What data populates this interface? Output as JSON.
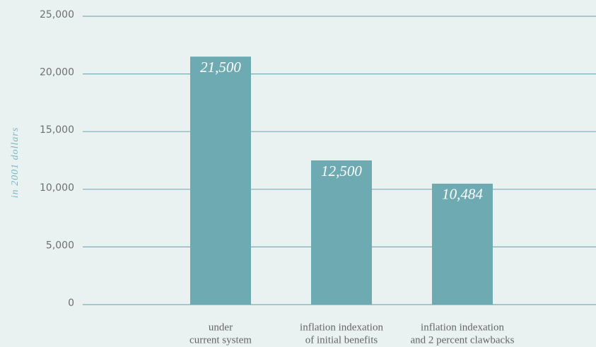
{
  "chart_data": {
    "type": "bar",
    "y_label": "in 2001 dollars",
    "categories": [
      [
        "under",
        "current system"
      ],
      [
        "inflation indexation",
        "of initial benefits"
      ],
      [
        "inflation indexation",
        "and 2 percent clawbacks"
      ]
    ],
    "values": [
      21500,
      12500,
      10484
    ],
    "value_labels": [
      "21,500",
      "12,500",
      "10,484"
    ],
    "color": "#6eaab2",
    "ylim": [
      0,
      25000
    ],
    "yticks": [
      0,
      {
        "value": 5000,
        "label": "5,000"
      },
      {
        "value": 10000,
        "label": "10,000"
      },
      {
        "value": 15000,
        "label": "15,000"
      },
      {
        "value": 20000,
        "label": "20,000"
      },
      {
        "value": 25000,
        "label": "25,000"
      }
    ],
    "grid": true
  }
}
